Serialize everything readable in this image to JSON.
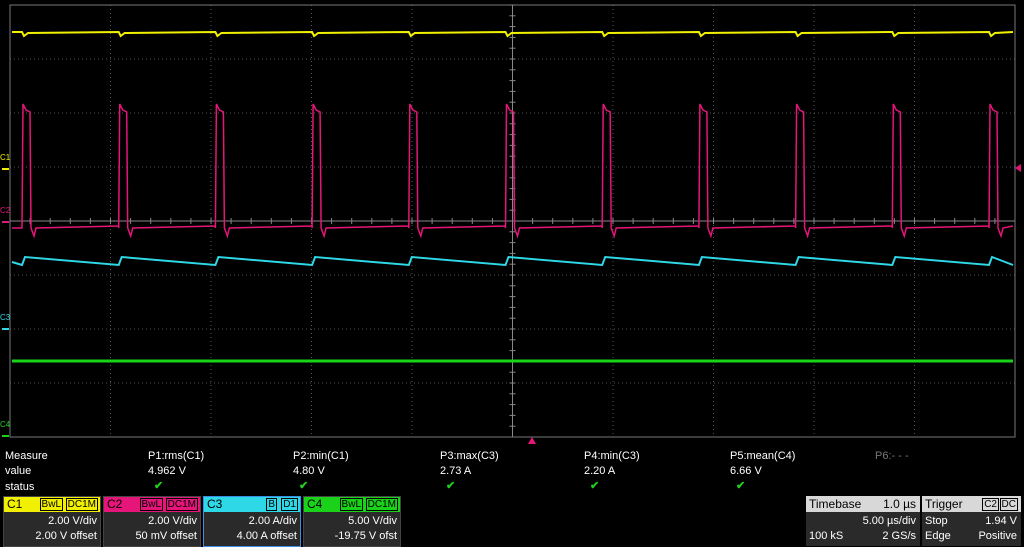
{
  "channel_markers": [
    "C1",
    "C2",
    "C3",
    "C4"
  ],
  "measure": {
    "headers": [
      "Measure",
      "P1:rms(C1)",
      "P2:min(C1)",
      "P3:max(C3)",
      "P4:min(C3)",
      "P5:mean(C4)",
      "P6:- - -"
    ],
    "values": [
      "value",
      "4.962 V",
      "4.80 V",
      "2.73 A",
      "2.20 A",
      "6.66 V"
    ],
    "status": [
      "status"
    ]
  },
  "channels": [
    {
      "name": "C1",
      "tags": [
        "BwL",
        "DC1M"
      ],
      "scale": "2.00 V/div",
      "offset": "2.00 V offset"
    },
    {
      "name": "C2",
      "tags": [
        "BwL",
        "DC1M"
      ],
      "scale": "2.00 V/div",
      "offset": "50 mV offset"
    },
    {
      "name": "C3",
      "tags": [
        "B",
        "D1"
      ],
      "scale": "2.00 A/div",
      "offset": "4.00 A offset"
    },
    {
      "name": "C4",
      "tags": [
        "BwL",
        "DC1M"
      ],
      "scale": "5.00 V/div",
      "offset": "-19.75 V ofst"
    }
  ],
  "timebase": {
    "title": "Timebase",
    "delay": "1.0 µs",
    "scale": "5.00 µs/div",
    "samples": "100 kS",
    "rate": "2 GS/s"
  },
  "trigger": {
    "title": "Trigger",
    "source": "C2",
    "coupling": "DC",
    "mode": "Stop",
    "level": "1.94 V",
    "type": "Edge",
    "slope": "Positive"
  }
}
